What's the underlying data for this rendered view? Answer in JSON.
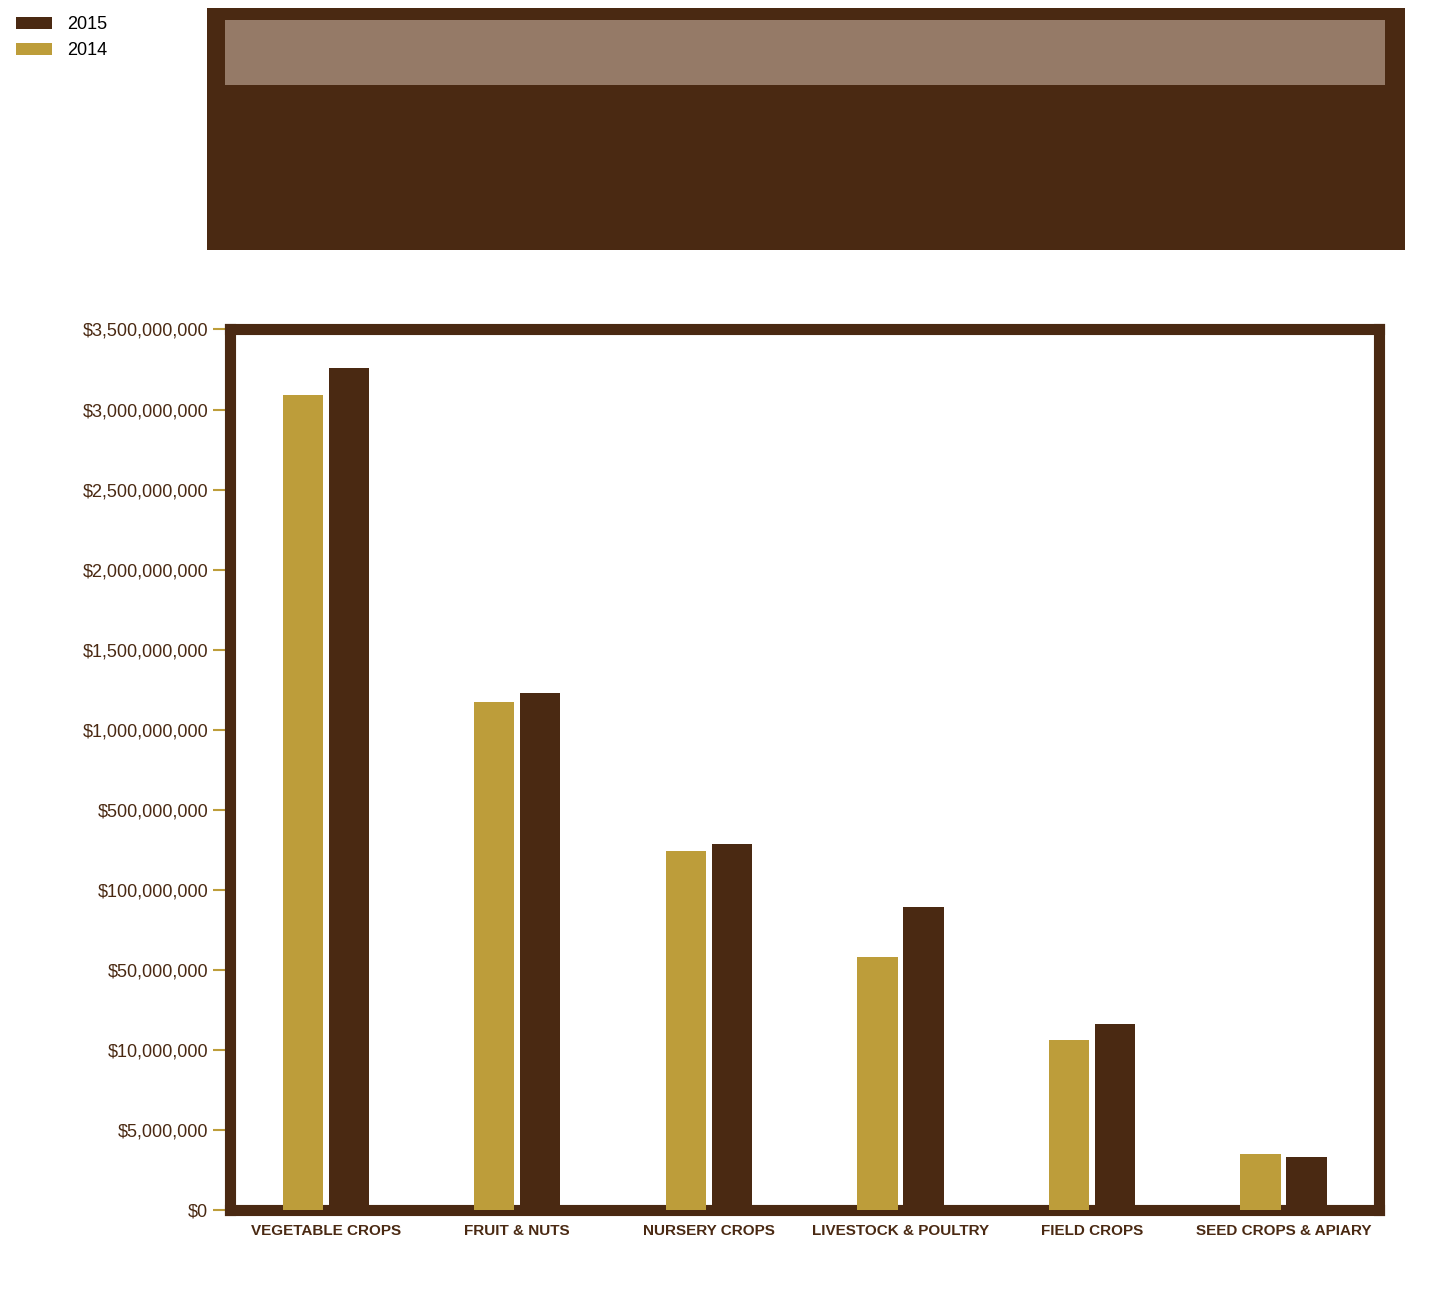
{
  "chart_data": {
    "type": "bar",
    "categories": [
      "VEGETABLE CROPS",
      "FRUIT & NUTS",
      "NURSERY CROPS",
      "LIVESTOCK & POULTRY",
      "FIELD CROPS",
      "SEED CROPS & APIARY"
    ],
    "series": [
      {
        "name": "2014",
        "color": "#bd9d3a",
        "values": [
          3090000000,
          1170000000,
          293000000,
          58000000,
          15000000,
          3500000
        ]
      },
      {
        "name": "2015",
        "color": "#4a2912",
        "values": [
          3260000000,
          1230000000,
          331000000,
          89000000,
          23000000,
          3300000
        ]
      }
    ],
    "ylim": [
      0,
      3500000000
    ],
    "yticks": [
      {
        "value": 0,
        "label": "$0"
      },
      {
        "value": 5000000,
        "label": "$5,000,000"
      },
      {
        "value": 10000000,
        "label": "$10,000,000"
      },
      {
        "value": 50000000,
        "label": "$50,000,000"
      },
      {
        "value": 100000000,
        "label": "$100,000,000"
      },
      {
        "value": 500000000,
        "label": "$500,000,000"
      },
      {
        "value": 1000000000,
        "label": "$1,000,000,000"
      },
      {
        "value": 1500000000,
        "label": "$1,500,000,000"
      },
      {
        "value": 2000000000,
        "label": "$2,000,000,000"
      },
      {
        "value": 2500000000,
        "label": "$2,500,000,000"
      },
      {
        "value": 3000000000,
        "label": "$3,000,000,000"
      },
      {
        "value": 3500000000,
        "label": "$3,500,000,000"
      }
    ],
    "legend": "upper left",
    "grid": false
  }
}
